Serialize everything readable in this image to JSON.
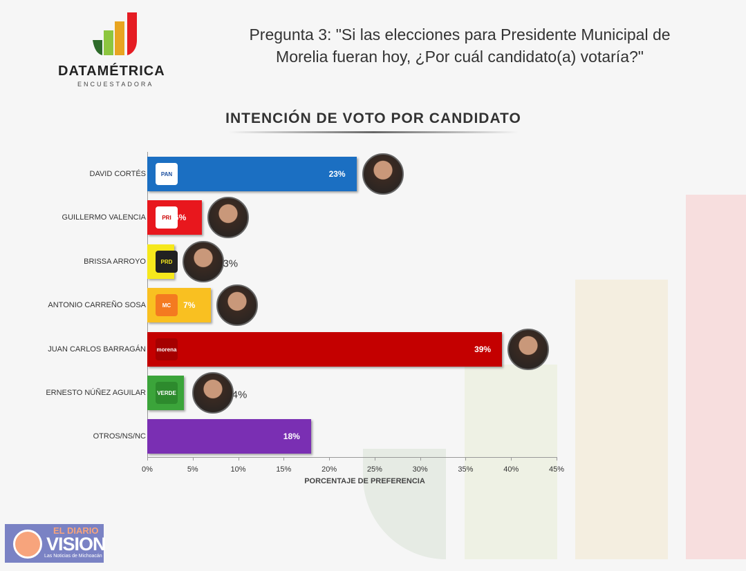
{
  "header": {
    "logo": "DATAMÉTRICA",
    "logo_sub": "ENCUESTADORA",
    "question": "Pregunta 3: \"Si las elecciones para Presidente Municipal de Morelia fueran hoy, ¿Por cuál candidato(a) votaría?\""
  },
  "chart_data": {
    "type": "bar",
    "orientation": "horizontal",
    "title": "INTENCIÓN DE VOTO POR CANDIDATO",
    "xlabel": "PORCENTAJE DE PREFERENCIA",
    "ylabel": "",
    "xlim": [
      0,
      45
    ],
    "ticks": [
      "0%",
      "5%",
      "10%",
      "15%",
      "20%",
      "25%",
      "30%",
      "35%",
      "40%",
      "45%"
    ],
    "categories": [
      "DAVID CORTÉS",
      "GUILLERMO VALENCIA",
      "BRISSA ARROYO",
      "ANTONIO CARREÑO SOSA",
      "JUAN CARLOS BARRAGÁN",
      "ERNESTO NÚÑEZ AGUILAR",
      "OTROS/NS/NC"
    ],
    "values": [
      23,
      6,
      3,
      7,
      39,
      4,
      18
    ],
    "labels": [
      "23%",
      "6%",
      "3%",
      "7%",
      "39%",
      "4%",
      "18%"
    ],
    "colors": [
      "#1b6fc2",
      "#e8171d",
      "#f6e81c",
      "#f9c021",
      "#c40000",
      "#3ba43a",
      "#7a2fb3"
    ],
    "party_badges": [
      "PAN",
      "PRI",
      "PRD",
      "MC",
      "morena",
      "VERDE",
      ""
    ]
  },
  "footer": {
    "brand_top": "EL DIARIO",
    "brand": "VISION",
    "brand_sub": "Las Noticias de Michoacán"
  }
}
